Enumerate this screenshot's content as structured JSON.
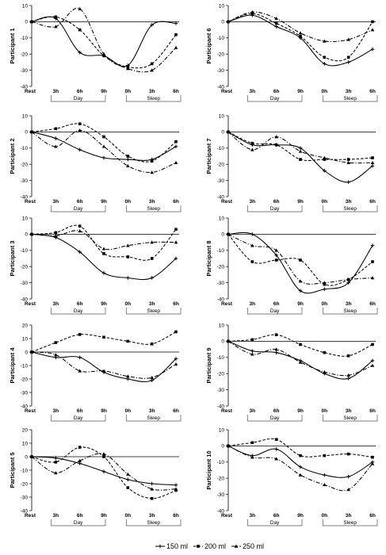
{
  "chart_data": {
    "type": "line",
    "x_ticks": [
      "Rest",
      "3h",
      "6h",
      "9h",
      "0h",
      "3h",
      "6h"
    ],
    "groups": [
      "Day",
      "Sleep"
    ],
    "ylim": [
      -40,
      20
    ],
    "y_step": 10,
    "legend": {
      "placement": "bottom-center",
      "entries": [
        {
          "label": "150 ml",
          "style": "solid",
          "marker": "plus"
        },
        {
          "label": "200 ml",
          "style": "dashed",
          "marker": "square"
        },
        {
          "label": "250 ml",
          "style": "dashdot",
          "marker": "triangle"
        }
      ]
    },
    "panels": [
      {
        "label": "Participant 1",
        "ylim": [
          -40,
          10
        ],
        "series": [
          {
            "name": "150 ml",
            "values": [
              0,
              2,
              -19,
              -21,
              -27,
              -2,
              -1
            ]
          },
          {
            "name": "200 ml",
            "values": [
              0,
              3,
              -5,
              -21,
              -28,
              -26,
              -8
            ]
          },
          {
            "name": "250 ml",
            "values": [
              0,
              -3,
              8,
              -20,
              -29,
              -30,
              -16
            ]
          }
        ]
      },
      {
        "label": "Participant 6",
        "ylim": [
          -40,
          10
        ],
        "series": [
          {
            "name": "150 ml",
            "values": [
              0,
              4,
              -3,
              -10,
              -26,
              -25,
              -17
            ]
          },
          {
            "name": "200 ml",
            "values": [
              0,
              5,
              -1,
              -9,
              -22,
              -22,
              0
            ]
          },
          {
            "name": "250 ml",
            "values": [
              0,
              6,
              2,
              -7,
              -12,
              -11,
              -5
            ]
          }
        ]
      },
      {
        "label": "Participant 2",
        "ylim": [
          -40,
          10
        ],
        "series": [
          {
            "name": "150 ml",
            "values": [
              0,
              -4,
              -11,
              -16,
              -17,
              -17,
              -9
            ]
          },
          {
            "name": "200 ml",
            "values": [
              0,
              2,
              5,
              -3,
              -15,
              -18,
              -6
            ]
          },
          {
            "name": "250 ml",
            "values": [
              0,
              -9,
              1,
              -9,
              -21,
              -25,
              -19
            ]
          }
        ]
      },
      {
        "label": "Participant 7",
        "ylim": [
          -40,
          10
        ],
        "series": [
          {
            "name": "150 ml",
            "values": [
              0,
              -8,
              -8,
              -10,
              -24,
              -31,
              -21
            ]
          },
          {
            "name": "200 ml",
            "values": [
              0,
              -7,
              -8,
              -17,
              -17,
              -17,
              -16
            ]
          },
          {
            "name": "250 ml",
            "values": [
              0,
              -11,
              -3,
              -12,
              -16,
              -19,
              -19
            ]
          }
        ]
      },
      {
        "label": "Participant 3",
        "ylim": [
          -40,
          10
        ],
        "series": [
          {
            "name": "150 ml",
            "values": [
              0,
              -2,
              -11,
              -24,
              -27,
              -27,
              -15
            ]
          },
          {
            "name": "200 ml",
            "values": [
              0,
              1,
              5,
              -12,
              -14,
              -15,
              3
            ]
          },
          {
            "name": "250 ml",
            "values": [
              0,
              -1,
              2,
              -9,
              -7,
              -5,
              -5
            ]
          }
        ]
      },
      {
        "label": "Participant 8",
        "ylim": [
          -40,
          10
        ],
        "series": [
          {
            "name": "150 ml",
            "values": [
              0,
              0,
              -13,
              -35,
              -34,
              -30,
              -7
            ]
          },
          {
            "name": "200 ml",
            "values": [
              0,
              -17,
              -16,
              -16,
              -31,
              -28,
              -17
            ]
          },
          {
            "name": "250 ml",
            "values": [
              0,
              -7,
              -10,
              -29,
              -30,
              -28,
              -27
            ]
          }
        ]
      },
      {
        "label": "Participant 4",
        "ylim": [
          -40,
          20
        ],
        "series": [
          {
            "name": "150 ml",
            "values": [
              0,
              -4,
              -4,
              -15,
              -20,
              -21,
              -5
            ]
          },
          {
            "name": "200 ml",
            "values": [
              0,
              7,
              13,
              11,
              8,
              6,
              15
            ]
          },
          {
            "name": "250 ml",
            "values": [
              0,
              -2,
              -14,
              -14,
              -18,
              -19,
              -9
            ]
          }
        ]
      },
      {
        "label": "Participant 9",
        "ylim": [
          -40,
          10
        ],
        "series": [
          {
            "name": "150 ml",
            "values": [
              0,
              -6,
              -7,
              -12,
              -20,
              -23,
              -12
            ]
          },
          {
            "name": "200 ml",
            "values": [
              0,
              1,
              4,
              -2,
              -7,
              -9,
              -2
            ]
          },
          {
            "name": "250 ml",
            "values": [
              0,
              -8,
              -5,
              -13,
              -19,
              -21,
              -15
            ]
          }
        ]
      },
      {
        "label": "Participant 5",
        "ylim": [
          -40,
          20
        ],
        "series": [
          {
            "name": "150 ml",
            "values": [
              0,
              -1,
              -5,
              -11,
              -17,
              -20,
              -21
            ]
          },
          {
            "name": "200 ml",
            "values": [
              0,
              -4,
              7,
              0,
              -23,
              -31,
              -25
            ]
          },
          {
            "name": "250 ml",
            "values": [
              0,
              -12,
              -3,
              2,
              -13,
              -24,
              -24
            ]
          }
        ]
      },
      {
        "label": "Participant 10",
        "ylim": [
          -40,
          10
        ],
        "series": [
          {
            "name": "150 ml",
            "values": [
              0,
              -6,
              -2,
              -13,
              -18,
              -19,
              -10
            ]
          },
          {
            "name": "200 ml",
            "values": [
              0,
              2,
              4,
              -6,
              -6,
              -5,
              -7
            ]
          },
          {
            "name": "250 ml",
            "values": [
              0,
              -7,
              -8,
              -18,
              -24,
              -27,
              -11
            ]
          }
        ]
      }
    ]
  }
}
